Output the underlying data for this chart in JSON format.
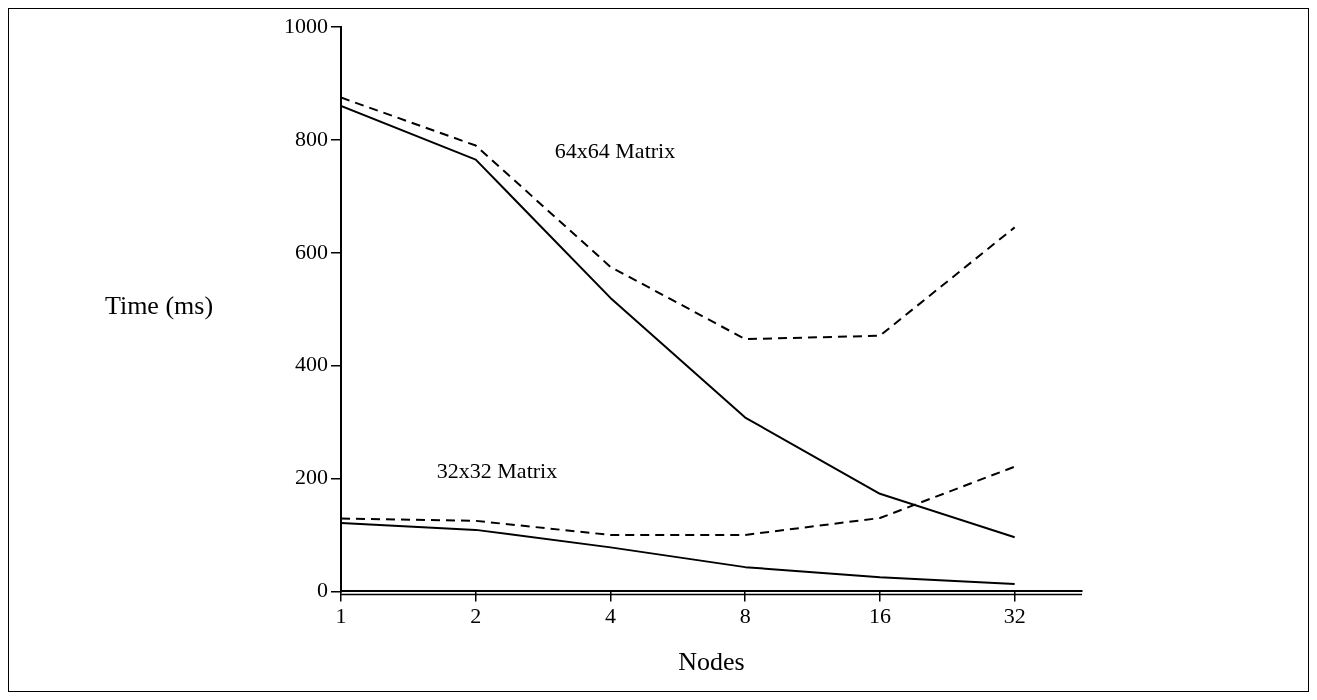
{
  "chart_data": {
    "type": "line",
    "xlabel": "Nodes",
    "ylabel": "Time (ms)",
    "log": "x",
    "xlim": [
      1,
      45.25
    ],
    "xticks": [
      1,
      2,
      4,
      8,
      16,
      32
    ],
    "ylim": [
      0,
      1000
    ],
    "yticks": [
      0,
      200,
      400,
      600,
      800,
      1000
    ],
    "x": [
      1,
      2,
      4,
      8,
      16,
      32
    ],
    "grid": false,
    "legend": false,
    "marker": "none",
    "series": [
      {
        "color": "#000000",
        "line_style": "solid",
        "values": [
          860,
          765,
          520,
          308,
          173,
          96
        ]
      },
      {
        "color": "#000000",
        "line_style": "dashed",
        "values": [
          875,
          790,
          575,
          447,
          453,
          645
        ]
      },
      {
        "color": "#000000",
        "line_style": "solid",
        "values": [
          121,
          109,
          78,
          43,
          25,
          13
        ]
      },
      {
        "color": "#000000",
        "line_style": "dashed",
        "values": [
          129,
          125,
          100,
          100,
          130,
          221
        ]
      }
    ],
    "annotations": [
      "64x64 Matrix",
      "32x32 Matrix"
    ]
  }
}
